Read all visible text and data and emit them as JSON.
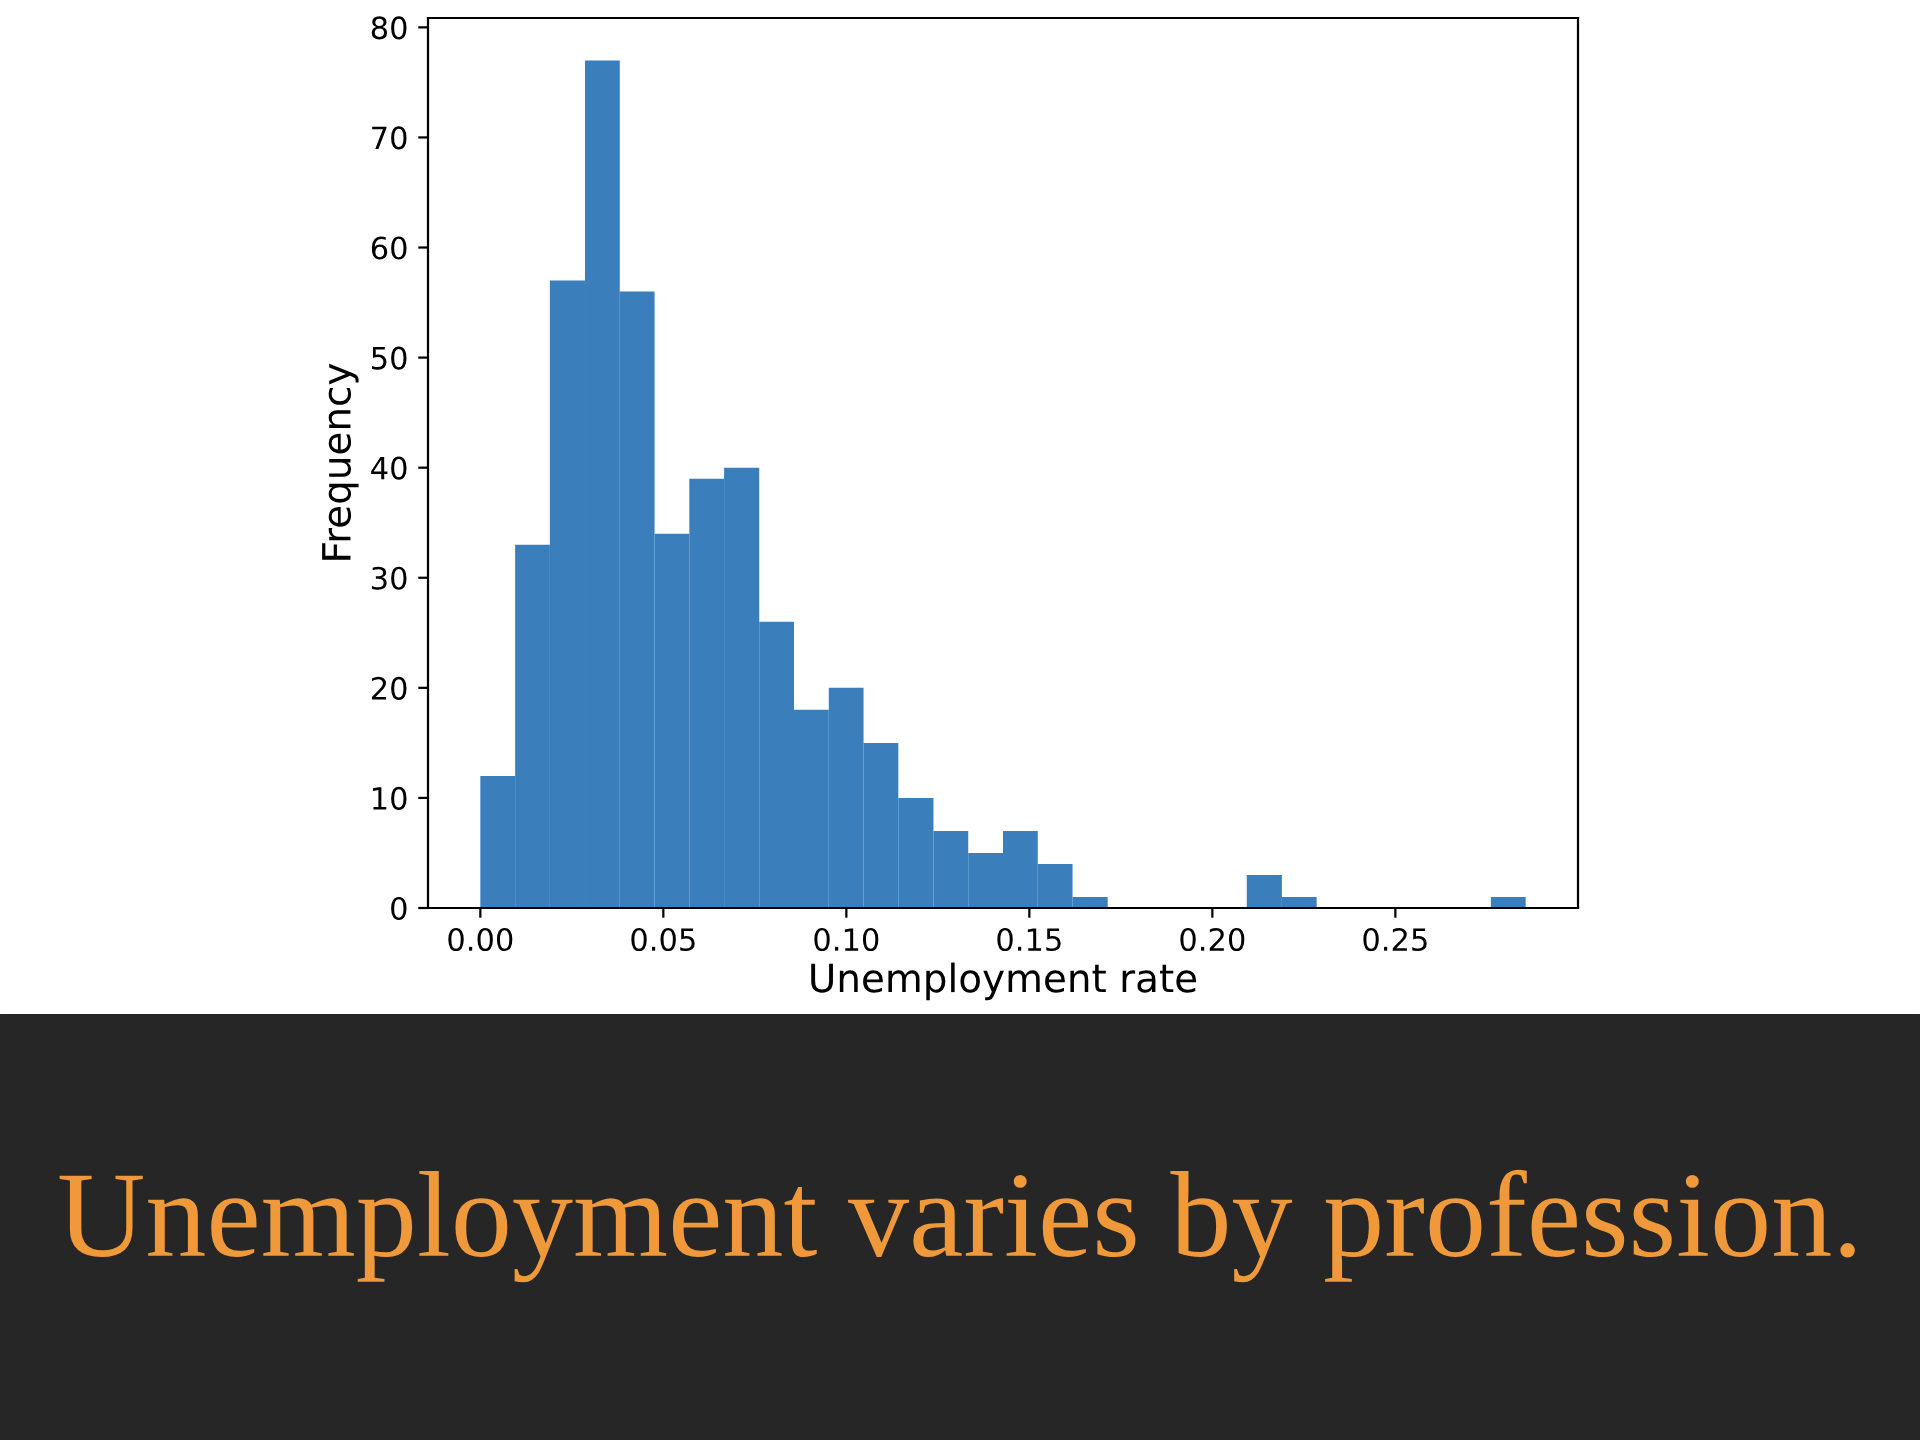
{
  "chart_data": {
    "type": "histogram",
    "title": "Unemployment varies by profession.",
    "xlabel": "Unemployment rate",
    "ylabel": "Frequency",
    "color": "#3a7ebb",
    "bins": [
      0,
      0.0095,
      0.019,
      0.0286,
      0.0381,
      0.0476,
      0.0571,
      0.0666,
      0.0762,
      0.0857,
      0.0952,
      0.1047,
      0.1142,
      0.1238,
      0.1333,
      0.1428,
      0.1523,
      0.1618,
      0.1714,
      0.1809,
      0.1904,
      0.1999,
      0.2094,
      0.219,
      0.2285,
      0.238,
      0.2475,
      0.257,
      0.2666,
      0.2761,
      0.2856
    ],
    "values": [
      12,
      33,
      57,
      77,
      56,
      34,
      39,
      40,
      26,
      18,
      20,
      15,
      10,
      7,
      5,
      7,
      4,
      1,
      0,
      0,
      0,
      0,
      3,
      1,
      0,
      0,
      0,
      0,
      0,
      1
    ],
    "xlim": [
      -0.0143,
      0.2999
    ],
    "xticks": [
      {
        "value": 0,
        "label": "0.00"
      },
      {
        "value": 0.05,
        "label": "0.05"
      },
      {
        "value": 0.1,
        "label": "0.10"
      },
      {
        "value": 0.15,
        "label": "0.15"
      },
      {
        "value": 0.2,
        "label": "0.20"
      },
      {
        "value": 0.25,
        "label": "0.25"
      }
    ],
    "ylim": [
      0,
      80.85
    ],
    "yticks": [
      0,
      10,
      20,
      30,
      40,
      50,
      60,
      70,
      80
    ],
    "grid": false
  }
}
